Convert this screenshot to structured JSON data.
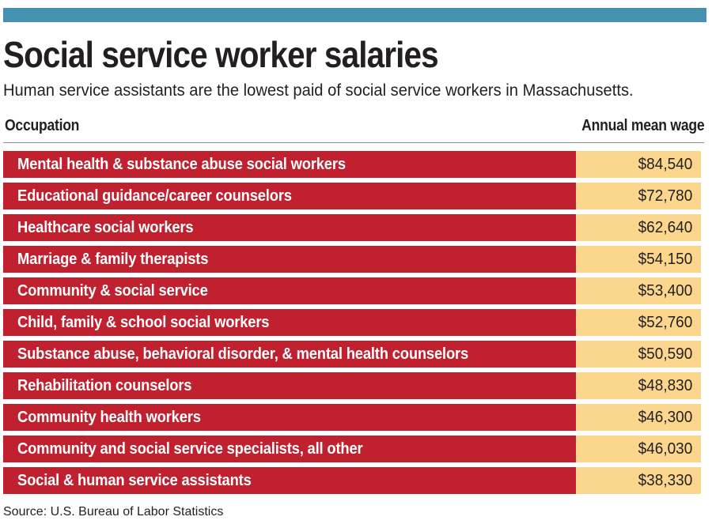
{
  "colors": {
    "accent_teal": "#4592b0",
    "bar_red": "#c1202e",
    "wage_tan": "#fcd68c",
    "text_dark": "#231f20"
  },
  "header": {
    "title": "Social service worker salaries",
    "subtitle": "Human service assistants are the lowest paid of social service workers in Massachusetts."
  },
  "table": {
    "columns": [
      "Occupation",
      "Annual mean wage"
    ],
    "rows": [
      {
        "occupation": "Mental health & substance abuse social workers",
        "wage": "$84,540"
      },
      {
        "occupation": "Educational guidance/career counselors",
        "wage": "$72,780"
      },
      {
        "occupation": "Healthcare social workers",
        "wage": "$62,640"
      },
      {
        "occupation": "Marriage & family therapists",
        "wage": "$54,150"
      },
      {
        "occupation": "Community & social service",
        "wage": "$53,400"
      },
      {
        "occupation": "Child, family & school social workers",
        "wage": "$52,760"
      },
      {
        "occupation": "Substance abuse, behavioral disorder, & mental health counselors",
        "wage": "$50,590"
      },
      {
        "occupation": "Rehabilitation counselors",
        "wage": "$48,830"
      },
      {
        "occupation": "Community health workers",
        "wage": "$46,300"
      },
      {
        "occupation": "Community and social service specialists, all other",
        "wage": "$46,030"
      },
      {
        "occupation": "Social & human service assistants",
        "wage": "$38,330"
      }
    ]
  },
  "footer": {
    "source": "Source: U.S. Bureau of Labor Statistics"
  },
  "chart_data": {
    "type": "table",
    "title": "Social service worker salaries",
    "subtitle": "Human service assistants are the lowest paid of social service workers in Massachusetts.",
    "columns": [
      "Occupation",
      "Annual mean wage"
    ],
    "categories": [
      "Mental health & substance abuse social workers",
      "Educational guidance/career counselors",
      "Healthcare social workers",
      "Marriage & family therapists",
      "Community & social service",
      "Child, family & school social workers",
      "Substance abuse, behavioral disorder, & mental health counselors",
      "Rehabilitation counselors",
      "Community health workers",
      "Community and social service specialists, all other",
      "Social & human service assistants"
    ],
    "values": [
      84540,
      72780,
      62640,
      54150,
      53400,
      52760,
      50590,
      48830,
      46300,
      46030,
      38330
    ],
    "value_labels": [
      "$84,540",
      "$72,780",
      "$62,640",
      "$54,150",
      "$53,400",
      "$52,760",
      "$50,590",
      "$48,830",
      "$46,300",
      "$46,030",
      "$38,330"
    ],
    "source": "Source: U.S. Bureau of Labor Statistics"
  }
}
